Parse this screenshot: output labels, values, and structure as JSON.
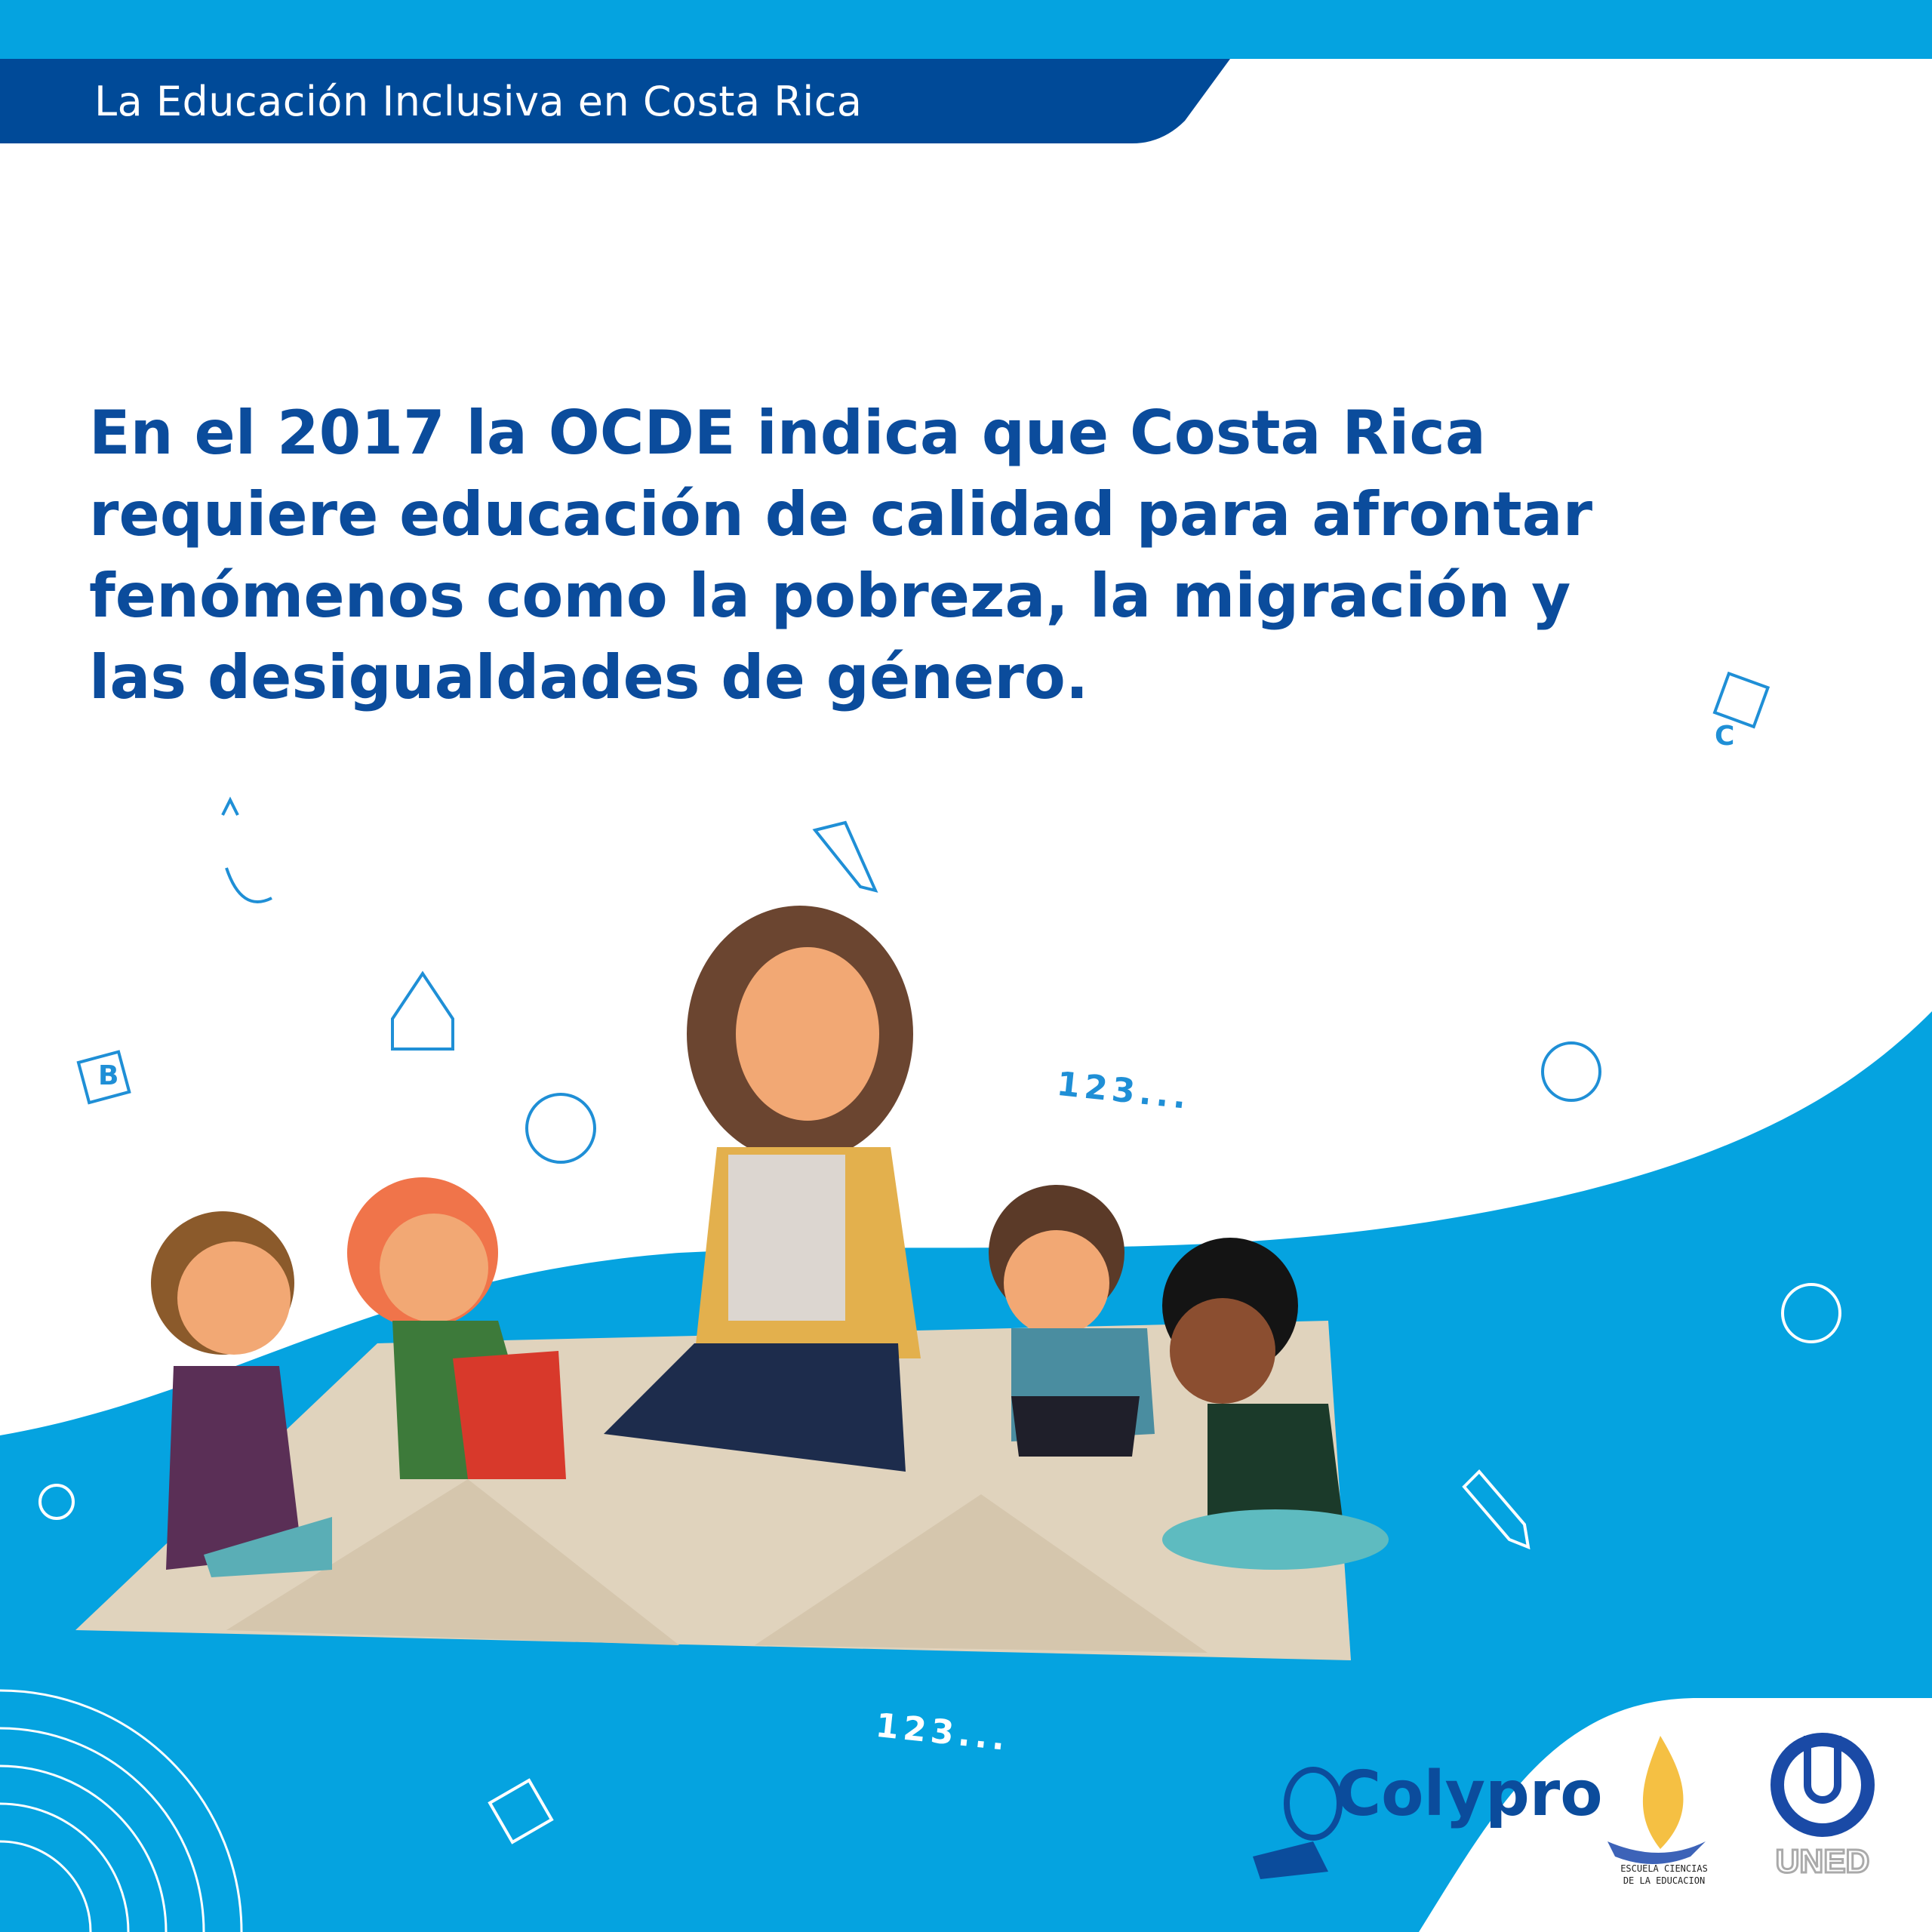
{
  "header": {
    "title": "La Educación Inclusiva en Costa Rica"
  },
  "headline": {
    "lines": [
      "En el 2017 la OCDE indica que Costa Rica",
      "requiere educación de calidad para afrontar",
      "fenómenos como la pobreza, la migración y",
      "las desigualdades de género."
    ]
  },
  "decorations": {
    "numbers_1": "123...",
    "numbers_2": "123...",
    "blocks": [
      "A",
      "B",
      "C"
    ]
  },
  "logos": {
    "colypro": "Colypro",
    "escuela": [
      "ESCUELA CIENCIAS",
      "DE LA EDUCACION"
    ],
    "uned": "UNED"
  },
  "colors": {
    "light_blue": "#05a3e0",
    "dark_blue": "#004a98",
    "text_blue": "#0b4c9c",
    "rug": "#e0d3bd"
  }
}
